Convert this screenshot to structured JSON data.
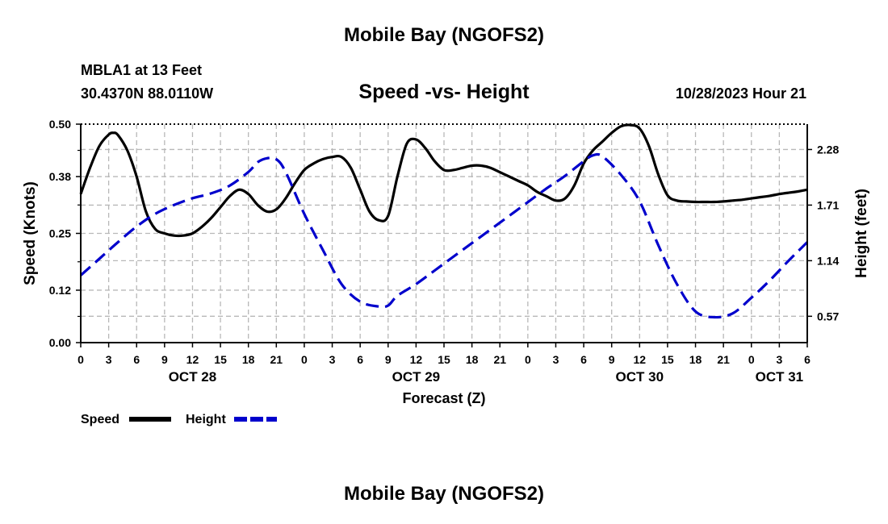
{
  "header": {
    "title": "Mobile Bay (NGOFS2)",
    "station": "MBLA1 at 13 Feet",
    "coordinates": "30.4370N  88.0110W",
    "subtitle": "Speed -vs- Height",
    "timestamp": "10/28/2023 Hour 21"
  },
  "footer": {
    "title": "Mobile Bay (NGOFS2)"
  },
  "chart_data": {
    "type": "line",
    "title": "Speed -vs- Height",
    "xlabel": "Forecast (Z)",
    "ylabel": "Speed (Knots)",
    "y2label": "Height (feet)",
    "x_unit": "hours from Oct 28 00Z",
    "xlim": [
      0,
      78
    ],
    "ylim": [
      0,
      0.5
    ],
    "y2lim": [
      0.3,
      2.54
    ],
    "x_tick_labels": [
      "0",
      "3",
      "6",
      "9",
      "12",
      "15",
      "18",
      "21",
      "0",
      "3",
      "6",
      "9",
      "12",
      "15",
      "18",
      "21",
      "0",
      "3",
      "6",
      "9",
      "12",
      "15",
      "18",
      "21",
      "0",
      "3",
      "6"
    ],
    "date_labels": [
      {
        "label": "OCT 28",
        "hour": 12
      },
      {
        "label": "OCT 29",
        "hour": 36
      },
      {
        "label": "OCT 30",
        "hour": 60
      },
      {
        "label": "OCT 31",
        "hour": 75
      }
    ],
    "y_ticks": [
      0.0,
      0.12,
      0.25,
      0.38,
      0.5
    ],
    "y_tick_labels": [
      "0.00",
      "0.12",
      "0.25",
      "0.38",
      "0.50"
    ],
    "y2_ticks": [
      0.57,
      1.14,
      1.71,
      2.28
    ],
    "y2_tick_labels": [
      "0.57",
      "1.14",
      "1.71",
      "2.28"
    ],
    "grid": true,
    "series": [
      {
        "name": "Speed",
        "axis": "left",
        "color": "#000000",
        "style": "solid",
        "x": [
          0,
          1,
          2,
          3,
          3.5,
          4,
          5,
          6,
          7,
          8,
          9,
          10,
          11,
          12,
          13,
          14,
          15,
          16,
          17,
          18,
          19,
          20,
          21,
          22,
          23,
          24,
          25,
          26,
          27,
          28,
          29,
          30,
          31,
          32,
          33,
          34,
          35,
          36,
          37,
          38,
          39,
          40,
          41,
          42,
          43,
          44,
          45,
          46,
          47,
          48,
          49,
          50,
          51,
          52,
          53,
          54,
          55,
          56,
          57,
          58,
          59,
          60,
          61,
          62,
          63,
          64,
          65,
          66,
          67,
          68,
          69,
          70,
          71,
          72,
          73,
          74,
          75,
          76,
          77,
          78
        ],
        "y": [
          0.34,
          0.4,
          0.45,
          0.476,
          0.48,
          0.475,
          0.44,
          0.38,
          0.3,
          0.26,
          0.25,
          0.245,
          0.245,
          0.25,
          0.265,
          0.285,
          0.31,
          0.335,
          0.35,
          0.34,
          0.315,
          0.3,
          0.305,
          0.33,
          0.365,
          0.395,
          0.41,
          0.42,
          0.425,
          0.425,
          0.4,
          0.35,
          0.3,
          0.28,
          0.29,
          0.38,
          0.455,
          0.465,
          0.445,
          0.415,
          0.395,
          0.395,
          0.4,
          0.405,
          0.405,
          0.4,
          0.39,
          0.38,
          0.37,
          0.36,
          0.345,
          0.335,
          0.325,
          0.33,
          0.36,
          0.41,
          0.44,
          0.46,
          0.48,
          0.495,
          0.498,
          0.49,
          0.45,
          0.385,
          0.337,
          0.325,
          0.323,
          0.322,
          0.322,
          0.322,
          0.323,
          0.325,
          0.327,
          0.33,
          0.333,
          0.336,
          0.34,
          0.343,
          0.346,
          0.35
        ]
      },
      {
        "name": "Height",
        "axis": "right",
        "color": "#0000cc",
        "style": "dashed",
        "x": [
          0,
          2,
          4,
          6,
          8,
          10,
          12,
          14,
          16,
          18,
          19,
          20,
          21,
          22,
          24,
          26,
          28,
          30,
          32,
          33,
          34,
          36,
          38,
          40,
          42,
          44,
          46,
          48,
          50,
          52,
          54,
          55,
          56,
          58,
          60,
          62,
          64,
          66,
          68,
          70,
          72,
          74,
          76,
          78
        ],
        "y": [
          0.99,
          1.16,
          1.33,
          1.49,
          1.62,
          1.71,
          1.78,
          1.83,
          1.91,
          2.05,
          2.15,
          2.19,
          2.18,
          2.05,
          1.62,
          1.25,
          0.9,
          0.72,
          0.67,
          0.68,
          0.78,
          0.9,
          1.04,
          1.18,
          1.32,
          1.46,
          1.6,
          1.74,
          1.88,
          2.01,
          2.16,
          2.22,
          2.21,
          2.02,
          1.75,
          1.3,
          0.9,
          0.62,
          0.56,
          0.6,
          0.76,
          0.94,
          1.14,
          1.33
        ]
      }
    ],
    "legend": {
      "placement": "bottom-left",
      "entries": [
        "Speed",
        "Height"
      ]
    }
  }
}
